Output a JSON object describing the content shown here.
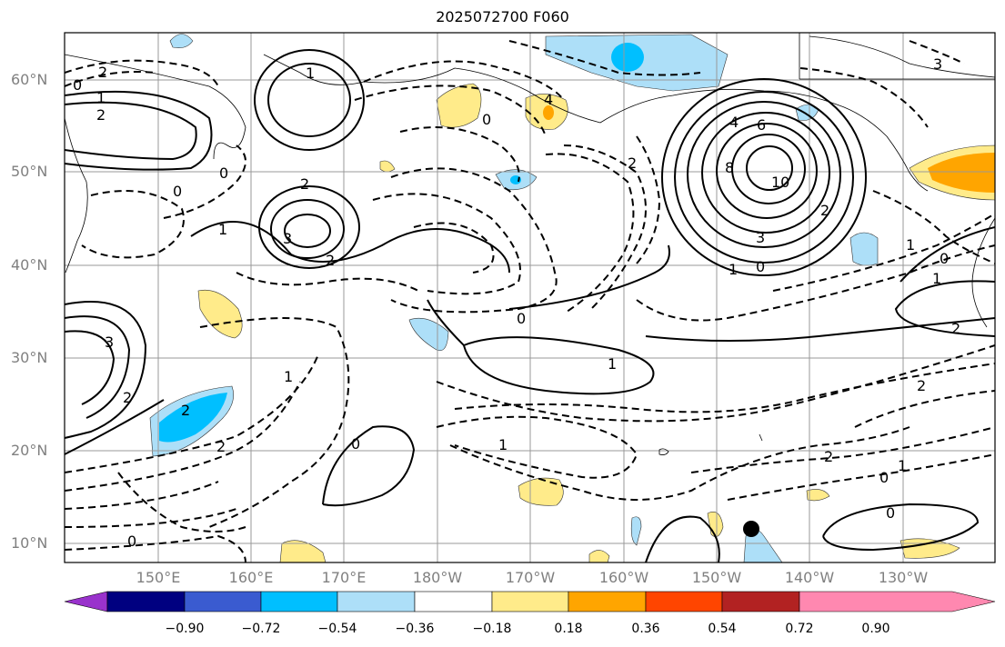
{
  "title": "2025072700 F060",
  "lat_labels": [
    "60°N",
    "50°N",
    "40°N",
    "30°N",
    "20°N",
    "10°N"
  ],
  "lon_labels": [
    "150°E",
    "160°E",
    "170°E",
    "180°W",
    "170°W",
    "160°W",
    "150°W",
    "140°W",
    "130°W"
  ],
  "contour_labels": [
    "2",
    "0",
    "1",
    "2",
    "4",
    "6",
    "8",
    "10",
    "3",
    "2",
    "1",
    "0",
    "1",
    "3",
    "2",
    "0",
    "0",
    "2",
    "3",
    "1",
    "0",
    "4",
    "0",
    "2",
    "1",
    "2",
    "2",
    "2",
    "1",
    "0",
    "2",
    "0",
    "1",
    "0",
    "2",
    "1",
    "0",
    "1",
    "2",
    "3",
    "0",
    "1"
  ],
  "colorbar": {
    "ticks": [
      "−0.90",
      "−0.72",
      "−0.54",
      "−0.36",
      "−0.18",
      "0.18",
      "0.36",
      "0.54",
      "0.72",
      "0.90"
    ],
    "colors": [
      "#9932CC",
      "#000080",
      "#3A5BD0",
      "#00BFFF",
      "#ADDFF8",
      "#FFFFFF",
      "#FFEB8A",
      "#FFA500",
      "#FF4500",
      "#B22222",
      "#FF88B0"
    ]
  },
  "marker": {
    "type": "black-dot"
  }
}
